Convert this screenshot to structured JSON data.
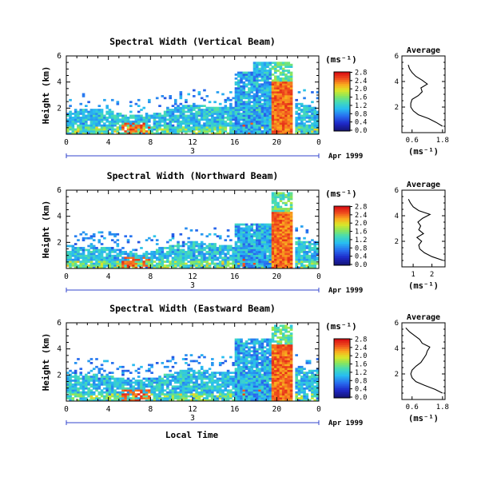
{
  "figure": {
    "xlabel": "Local Time",
    "ylabel": "Height (km)",
    "day_label": "3",
    "date_label": "Apr 1999",
    "colorbar_unit": "(ms⁻¹)",
    "avg_title": "Average",
    "avg_xlabel": "(ms⁻¹)"
  },
  "chart_data": [
    {
      "type": "heatmap",
      "title": "Spectral Width (Vertical Beam)",
      "x_ticks": [
        "0",
        "4",
        "8",
        "12",
        "16",
        "20",
        "0"
      ],
      "y_ticks": [
        "2",
        "4",
        "6"
      ],
      "xlim": [
        0,
        24
      ],
      "ylim": [
        0,
        6
      ],
      "colorbar": {
        "ticks": [
          "0.0",
          "0.4",
          "0.8",
          "1.2",
          "1.6",
          "2.0",
          "2.4",
          "2.8"
        ],
        "range": [
          0,
          3.0
        ]
      },
      "profile": {
        "type": "line",
        "title": "Average",
        "x_ticks": [
          "0.6",
          "1.8"
        ],
        "xlim": [
          0.2,
          1.9
        ],
        "y_ticks": [
          "2",
          "4",
          "6"
        ],
        "ylim": [
          0,
          6
        ],
        "height_km": [
          0.5,
          0.8,
          1.1,
          1.4,
          1.7,
          2.0,
          2.3,
          2.6,
          2.9,
          3.2,
          3.5,
          3.8,
          4.1,
          4.4,
          4.7,
          5.0,
          5.3
        ],
        "width_ms": [
          1.8,
          1.55,
          1.25,
          0.85,
          0.65,
          0.55,
          0.55,
          0.6,
          0.85,
          1.0,
          0.95,
          1.2,
          1.0,
          0.75,
          0.6,
          0.5,
          0.45
        ]
      }
    },
    {
      "type": "heatmap",
      "title": "Spectral Width (Northward Beam)",
      "x_ticks": [
        "0",
        "4",
        "8",
        "12",
        "16",
        "20",
        "0"
      ],
      "y_ticks": [
        "2",
        "4",
        "6"
      ],
      "xlim": [
        0,
        24
      ],
      "ylim": [
        0,
        6
      ],
      "colorbar": {
        "ticks": [
          "0.0",
          "0.4",
          "0.8",
          "1.2",
          "1.6",
          "2.0",
          "2.4",
          "2.8"
        ],
        "range": [
          0,
          3.0
        ]
      },
      "profile": {
        "type": "line",
        "title": "Average",
        "x_ticks": [
          "1",
          "2"
        ],
        "xlim": [
          0.4,
          2.7
        ],
        "y_ticks": [
          "2",
          "4",
          "6"
        ],
        "ylim": [
          0,
          6
        ],
        "height_km": [
          0.5,
          0.8,
          1.1,
          1.4,
          1.7,
          2.0,
          2.3,
          2.6,
          2.9,
          3.2,
          3.5,
          3.8,
          4.1,
          4.4,
          4.7,
          5.0,
          5.3
        ],
        "width_ms": [
          2.6,
          2.0,
          1.6,
          1.35,
          1.3,
          1.45,
          1.2,
          1.55,
          1.3,
          1.4,
          1.25,
          1.5,
          1.9,
          1.3,
          1.0,
          0.85,
          0.75
        ]
      }
    },
    {
      "type": "heatmap",
      "title": "Spectral Width (Eastward Beam)",
      "x_ticks": [
        "0",
        "4",
        "8",
        "12",
        "16",
        "20",
        "0"
      ],
      "y_ticks": [
        "2",
        "4",
        "6"
      ],
      "xlim": [
        0,
        24
      ],
      "ylim": [
        0,
        6
      ],
      "colorbar": {
        "ticks": [
          "0.0",
          "0.4",
          "0.8",
          "1.2",
          "1.6",
          "2.0",
          "2.4",
          "2.8"
        ],
        "range": [
          0,
          3.0
        ]
      },
      "profile": {
        "type": "line",
        "title": "Average",
        "x_ticks": [
          "0.6",
          "1.8"
        ],
        "xlim": [
          0.2,
          1.9
        ],
        "y_ticks": [
          "2",
          "4",
          "6"
        ],
        "ylim": [
          0,
          6
        ],
        "height_km": [
          0.5,
          0.8,
          1.1,
          1.4,
          1.7,
          2.0,
          2.3,
          2.6,
          2.9,
          3.2,
          3.5,
          3.8,
          4.1,
          4.4,
          4.7,
          5.0,
          5.3,
          5.6
        ],
        "width_ms": [
          1.8,
          1.5,
          1.1,
          0.75,
          0.6,
          0.55,
          0.6,
          0.75,
          0.95,
          1.05,
          1.15,
          1.2,
          1.3,
          1.0,
          0.9,
          0.7,
          0.5,
          0.35
        ]
      }
    }
  ]
}
